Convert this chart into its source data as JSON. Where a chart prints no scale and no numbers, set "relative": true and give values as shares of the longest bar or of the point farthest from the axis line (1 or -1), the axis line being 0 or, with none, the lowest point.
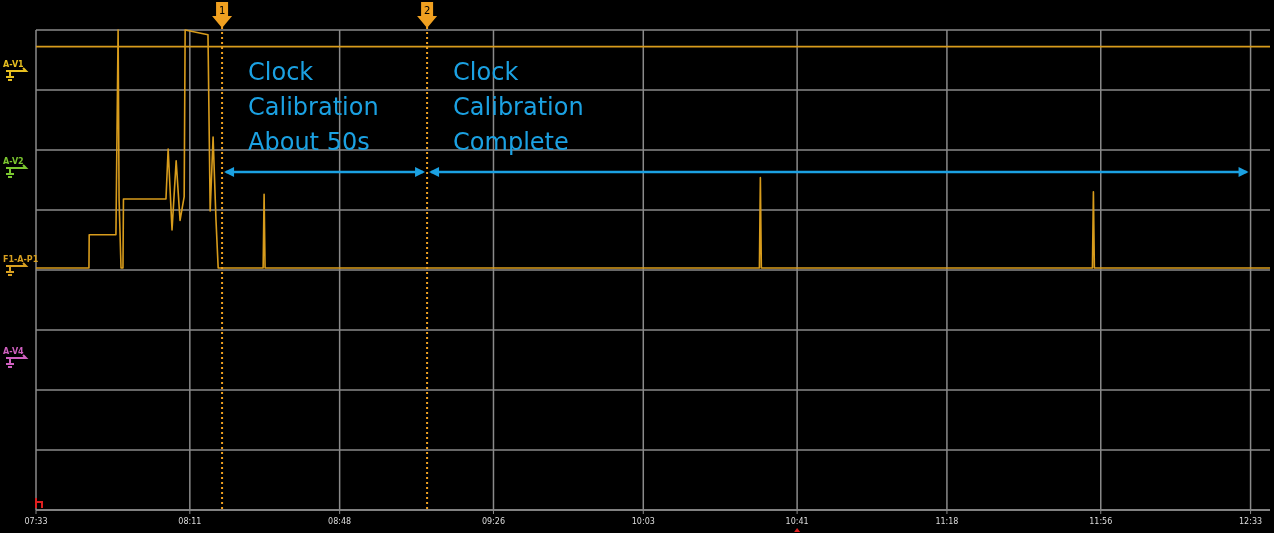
{
  "chart_data": {
    "type": "line",
    "relative": true,
    "grid": true,
    "line_style": "solid",
    "marker": "none",
    "xlim": [
      7.55,
      12.63
    ],
    "xticks": [
      {
        "value": 7.55,
        "label": "07:33"
      },
      {
        "value": 8.1833,
        "label": "08:11"
      },
      {
        "value": 8.8,
        "label": "08:48"
      },
      {
        "value": 9.4333,
        "label": "09:26"
      },
      {
        "value": 10.05,
        "label": "10:03"
      },
      {
        "value": 10.6833,
        "label": "10:41"
      },
      {
        "value": 11.3,
        "label": "11:18"
      },
      {
        "value": 11.9333,
        "label": "11:56"
      },
      {
        "value": 12.55,
        "label": "12:33"
      }
    ],
    "series": [
      {
        "color": "#d89c1c",
        "x": [
          7.55,
          12.63
        ],
        "values": [
          0.93,
          0.93
        ]
      },
      {
        "color": "#d89c1c",
        "x": [
          7.55,
          7.768,
          7.769,
          7.879,
          7.888,
          7.892,
          7.9,
          7.908,
          7.91,
          7.917,
          8.085,
          8.094,
          8.11,
          8.127,
          8.143,
          8.16,
          8.164,
          8.258,
          8.267,
          8.279,
          8.291,
          8.3,
          8.485,
          8.489,
          8.493,
          10.528,
          10.532,
          10.536,
          11.899,
          11.903,
          11.907,
          12.63
        ],
        "values": [
          0,
          0,
          0.14,
          0.14,
          1,
          0.29,
          0,
          0,
          0.29,
          0.29,
          0.29,
          0.5,
          0.16,
          0.45,
          0.2,
          0.3,
          1,
          0.98,
          0.24,
          0.55,
          0.2,
          0,
          0,
          0.31,
          0,
          0,
          0.38,
          0,
          0,
          0.32,
          0,
          0
        ]
      }
    ],
    "ref_lines": [
      {
        "axis": "x",
        "value": 8.316,
        "color": "#f0a020",
        "line_style": "dotted"
      },
      {
        "axis": "x",
        "value": 9.16,
        "color": "#f0a020",
        "line_style": "dotted"
      }
    ],
    "annotations": [
      "1",
      "2",
      "Clock\nCalibration\nAbout 50s",
      "Clock\nCalibration\nComplete",
      "A-V1",
      "A-V2",
      "F1-A-P1",
      "A-V4"
    ]
  }
}
